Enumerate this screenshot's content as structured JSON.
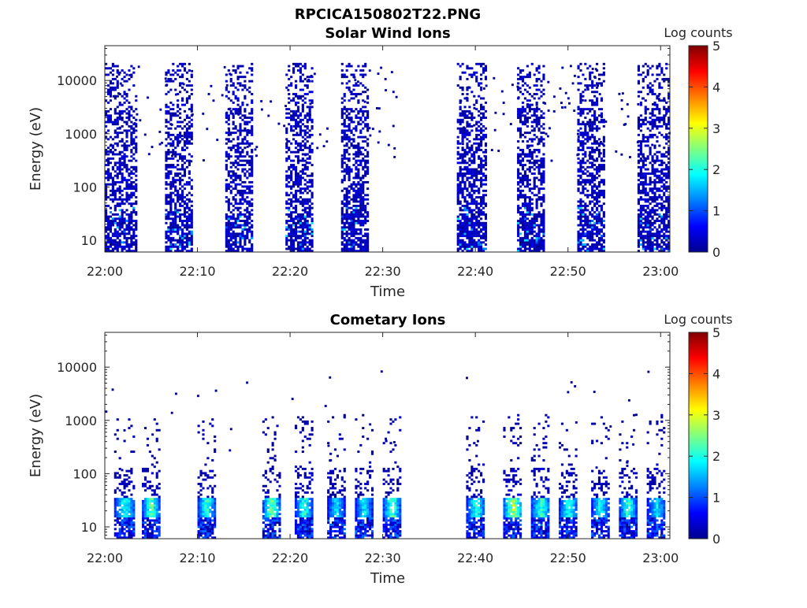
{
  "figure": {
    "title": "RPCICA150802T22.PNG"
  },
  "colorbar_label": "Log counts",
  "colormap": [
    "#00008f",
    "#0000ff",
    "#0080ff",
    "#00ffff",
    "#80ff80",
    "#ffff00",
    "#ff8000",
    "#ff0000",
    "#800000"
  ],
  "chart_data": [
    {
      "type": "heatmap",
      "title": "Solar Wind Ions",
      "xlabel": "Time",
      "ylabel": "Energy (eV)",
      "x_ticks": [
        "22:00",
        "22:10",
        "22:20",
        "22:30",
        "22:40",
        "22:50",
        "23:00"
      ],
      "y_ticks": [
        "10",
        "100",
        "1000",
        "10000"
      ],
      "y_scale": "log",
      "ylim_eV": [
        6,
        45000
      ],
      "xlim_min": [
        0,
        61
      ],
      "colorbar": {
        "label": "Log counts",
        "range": [
          0,
          5
        ],
        "ticks": [
          "0",
          "1",
          "2",
          "3",
          "4",
          "5"
        ]
      },
      "bursts": [
        {
          "start_min": 0,
          "end_min": 3.3,
          "density": 0.75
        },
        {
          "start_min": 6.5,
          "end_min": 9.5,
          "density": 0.78
        },
        {
          "start_min": 13,
          "end_min": 16,
          "density": 0.78
        },
        {
          "start_min": 19.5,
          "end_min": 22.5,
          "density": 0.8
        },
        {
          "start_min": 25.5,
          "end_min": 28.5,
          "density": 0.8
        },
        {
          "start_min": 38,
          "end_min": 41.2,
          "density": 0.8
        },
        {
          "start_min": 44.5,
          "end_min": 47.5,
          "density": 0.8
        },
        {
          "start_min": 51,
          "end_min": 54,
          "density": 0.8
        },
        {
          "start_min": 57.5,
          "end_min": 60.9,
          "density": 0.8
        }
      ],
      "data_gap_min": [
        31.8,
        38
      ]
    },
    {
      "type": "heatmap",
      "title": "Cometary Ions",
      "xlabel": "Time",
      "ylabel": "Energy (eV)",
      "x_ticks": [
        "22:00",
        "22:10",
        "22:20",
        "22:30",
        "22:40",
        "22:50",
        "23:00"
      ],
      "y_ticks": [
        "10",
        "100",
        "1000",
        "10000"
      ],
      "y_scale": "log",
      "ylim_eV": [
        6,
        45000
      ],
      "xlim_min": [
        0,
        61
      ],
      "colorbar": {
        "label": "Log counts",
        "range": [
          0,
          5
        ],
        "ticks": [
          "0",
          "1",
          "2",
          "3",
          "4",
          "5"
        ]
      },
      "bursts": [
        {
          "start_min": 1,
          "end_min": 3.2,
          "peak_log_counts": 2.4
        },
        {
          "start_min": 4,
          "end_min": 5.8,
          "peak_log_counts": 2.8
        },
        {
          "start_min": 10,
          "end_min": 11.8,
          "peak_log_counts": 2.6
        },
        {
          "start_min": 17,
          "end_min": 18.8,
          "peak_log_counts": 2.9
        },
        {
          "start_min": 20.5,
          "end_min": 22.3,
          "peak_log_counts": 2.5
        },
        {
          "start_min": 24,
          "end_min": 25.8,
          "peak_log_counts": 2.1
        },
        {
          "start_min": 27,
          "end_min": 28.8,
          "peak_log_counts": 2.2
        },
        {
          "start_min": 30,
          "end_min": 31.8,
          "peak_log_counts": 2.8
        },
        {
          "start_min": 39,
          "end_min": 41,
          "peak_log_counts": 2.5
        },
        {
          "start_min": 43,
          "end_min": 45,
          "peak_log_counts": 3.2
        },
        {
          "start_min": 46,
          "end_min": 48,
          "peak_log_counts": 2.6
        },
        {
          "start_min": 49,
          "end_min": 51,
          "peak_log_counts": 2.4
        },
        {
          "start_min": 52.5,
          "end_min": 54.3,
          "peak_log_counts": 2.4
        },
        {
          "start_min": 55.5,
          "end_min": 57.3,
          "peak_log_counts": 2.6
        },
        {
          "start_min": 58.5,
          "end_min": 60.5,
          "peak_log_counts": 2.1
        }
      ],
      "data_gap_min": [
        32.2,
        38
      ]
    }
  ]
}
